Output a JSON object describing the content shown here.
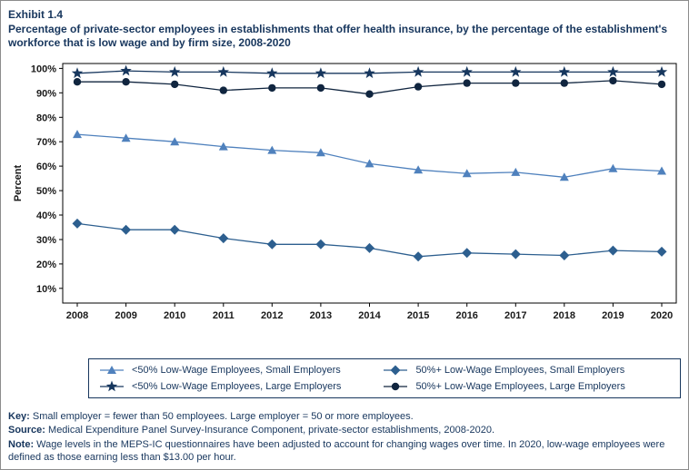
{
  "header": {
    "exhibit_label": "Exhibit 1.4",
    "title": "Percentage of private-sector employees in establishments that offer health insurance, by the percentage of the establishment's workforce that is low wage and by firm size, 2008-2020"
  },
  "chart_data": {
    "type": "line",
    "x": [
      2008,
      2009,
      2010,
      2011,
      2012,
      2013,
      2014,
      2015,
      2016,
      2017,
      2018,
      2019,
      2020
    ],
    "ylabel": "Percent",
    "ylim": [
      4,
      102
    ],
    "yticks": [
      10,
      20,
      30,
      40,
      50,
      60,
      70,
      80,
      90,
      100
    ],
    "ytick_suffix": "%",
    "grid": false,
    "legend_position": "bottom-box",
    "series": [
      {
        "name": "<50% Low-Wage Employees, Small Employers",
        "marker": "triangle",
        "color": "#4f81bd",
        "values": [
          73,
          71.5,
          70,
          68,
          66.5,
          65.5,
          61,
          58.5,
          57,
          57.5,
          55.5,
          59,
          58
        ]
      },
      {
        "name": "50%+ Low-Wage Employees, Small Employers",
        "marker": "diamond",
        "color": "#2d5f8f",
        "values": [
          36.5,
          34,
          34,
          30.5,
          28,
          28,
          26.5,
          23,
          24.5,
          24,
          23.5,
          25.5,
          25
        ]
      },
      {
        "name": "<50% Low-Wage Employees, Large Employers",
        "marker": "star",
        "color": "#17375e",
        "values": [
          98,
          99,
          98.5,
          98.5,
          98,
          98,
          98,
          98.5,
          98.5,
          98.5,
          98.5,
          98.5,
          98.5
        ]
      },
      {
        "name": "50%+ Low-Wage Employees, Large Employers",
        "marker": "circle",
        "color": "#10253f",
        "values": [
          94.5,
          94.5,
          93.5,
          91,
          92,
          92,
          89.5,
          92.5,
          94,
          94,
          94,
          95,
          93.5
        ]
      }
    ]
  },
  "notes": {
    "key": {
      "label": "Key:",
      "text": " Small employer = fewer than 50 employees. Large employer = 50 or more employees."
    },
    "source": {
      "label": "Source:",
      "text": " Medical Expenditure Panel Survey-Insurance Component, private-sector establishments, 2008-2020."
    },
    "note": {
      "label": "Note:",
      "text": " Wage levels in the MEPS-IC questionnaires have been adjusted to account for changing wages over time. In 2020, low-wage employees were defined as those earning less than $13.00 per hour."
    }
  }
}
